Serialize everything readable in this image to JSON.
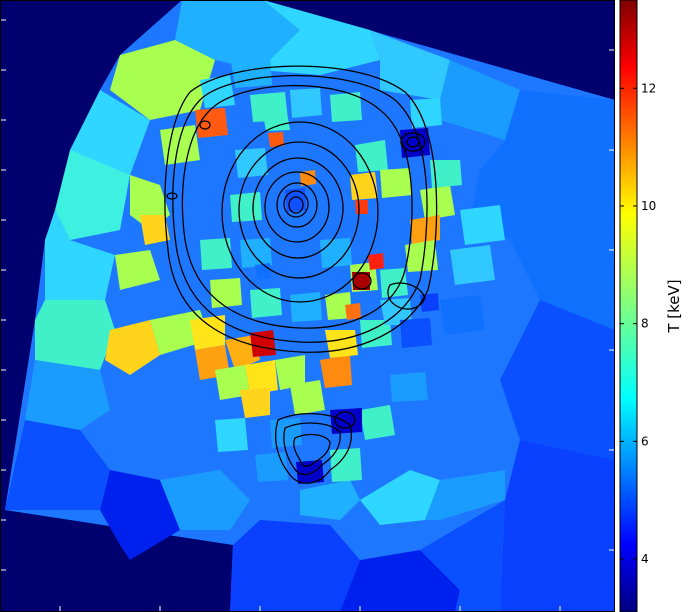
{
  "colorbar": {
    "label": "T [keV]",
    "ticks": [
      "4",
      "6",
      "8",
      "10",
      "12"
    ],
    "tick_values": [
      4,
      6,
      8,
      10,
      12
    ],
    "range": [
      3.1,
      13.5
    ],
    "colormap": "jet"
  },
  "colors": {
    "background": "#00006e",
    "contours": "#000000",
    "frame": "#000000"
  },
  "map": {
    "type": "temperature map with surface-brightness contours",
    "grid": false
  }
}
